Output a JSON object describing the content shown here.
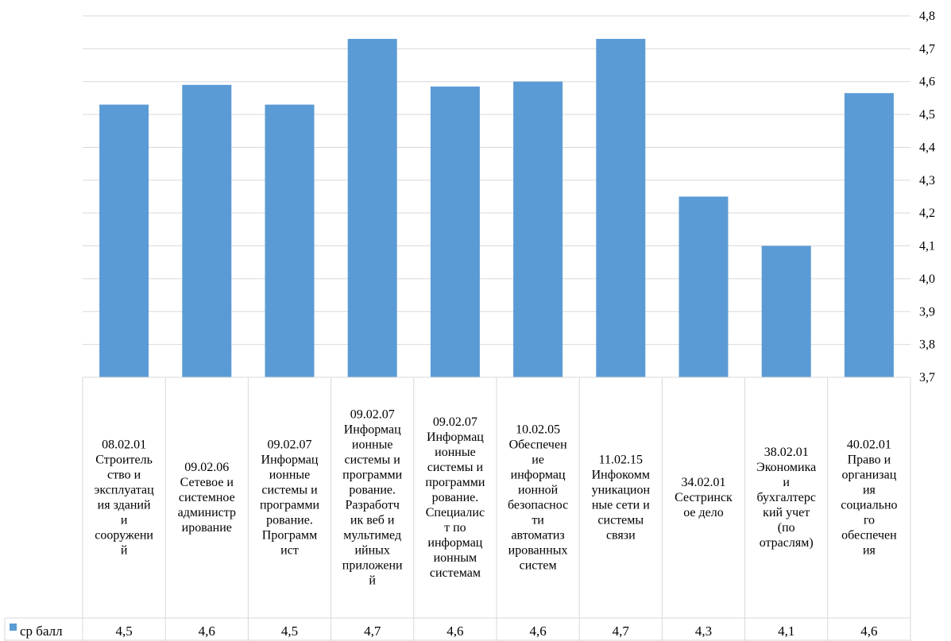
{
  "chart_data": {
    "type": "bar",
    "title": "",
    "xlabel": "",
    "ylabel": "",
    "ylim": [
      3.7,
      4.8
    ],
    "y_ticks": [
      "3,7",
      "3,8",
      "3,9",
      "4,0",
      "4,1",
      "4,2",
      "4,3",
      "4,4",
      "4,5",
      "4,6",
      "4,7",
      "4,8"
    ],
    "y_axis_position": "right",
    "grid": true,
    "bar_color": "#5B9BD5",
    "grid_color": "#D9D9D9",
    "categories": [
      "08.02.01 Строитель ство и эксплуатац ия зданий и сооружени й",
      "09.02.06 Сетевое и системное администр ирование",
      "09.02.07 Информац ионные системы и программи рование. Программ ист",
      "09.02.07 Информац ионные системы и программи рование. Разработч ик веб и мультимед ийных приложени й",
      "09.02.07 Информац ионные системы и программи рование. Специалис т по информац ионным системам",
      "10.02.05 Обеспечен ие информац ионной безопаснос ти автоматиз ированных систем",
      "11.02.15 Инфокомм уникацион ные сети и системы связи",
      "34.02.01 Сестринск ое дело",
      "38.02.01 Экономика и бухгалтерс кий учет (по отраслям)",
      "40.02.01 Право и организац ия социально го обеспечен ия"
    ],
    "category_lines": [
      [
        "08.02.01",
        "Строитель",
        "ство и",
        "эксплуатац",
        "ия зданий",
        "и",
        "сооружени",
        "й"
      ],
      [
        "09.02.06",
        "Сетевое и",
        "системное",
        "администр",
        "ирование"
      ],
      [
        "09.02.07",
        "Информац",
        "ионные",
        "системы и",
        "программи",
        "рование.",
        "Программ",
        "ист"
      ],
      [
        "09.02.07",
        "Информац",
        "ионные",
        "системы и",
        "программи",
        "рование.",
        "Разработч",
        "ик веб и",
        "мультимед",
        "ийных",
        "приложени",
        "й"
      ],
      [
        "09.02.07",
        "Информац",
        "ионные",
        "системы и",
        "программи",
        "рование.",
        "Специалис",
        "т по",
        "информац",
        "ионным",
        "системам"
      ],
      [
        "10.02.05",
        "Обеспечен",
        "ие",
        "информац",
        "ионной",
        "безопаснос",
        "ти",
        "автоматиз",
        "ированных",
        "систем"
      ],
      [
        "11.02.15",
        "Инфокомм",
        "уникацион",
        "ные сети и",
        "системы",
        "связи"
      ],
      [
        "34.02.01",
        "Сестринск",
        "ое дело"
      ],
      [
        "38.02.01",
        "Экономика",
        "и",
        "бухгалтерс",
        "кий учет",
        "(по",
        "отраслям)"
      ],
      [
        "40.02.01",
        "Право и",
        "организац",
        "ия",
        "социально",
        "го",
        "обеспечен",
        "ия"
      ]
    ],
    "series": [
      {
        "name": "ср балл",
        "values": [
          4.53,
          4.59,
          4.53,
          4.73,
          4.585,
          4.6,
          4.73,
          4.25,
          4.1,
          4.565
        ],
        "labels": [
          "4,5",
          "4,6",
          "4,5",
          "4,7",
          "4,6",
          "4,6",
          "4,7",
          "4,3",
          "4,1",
          "4,6"
        ]
      }
    ],
    "legend": "data-table-left"
  }
}
